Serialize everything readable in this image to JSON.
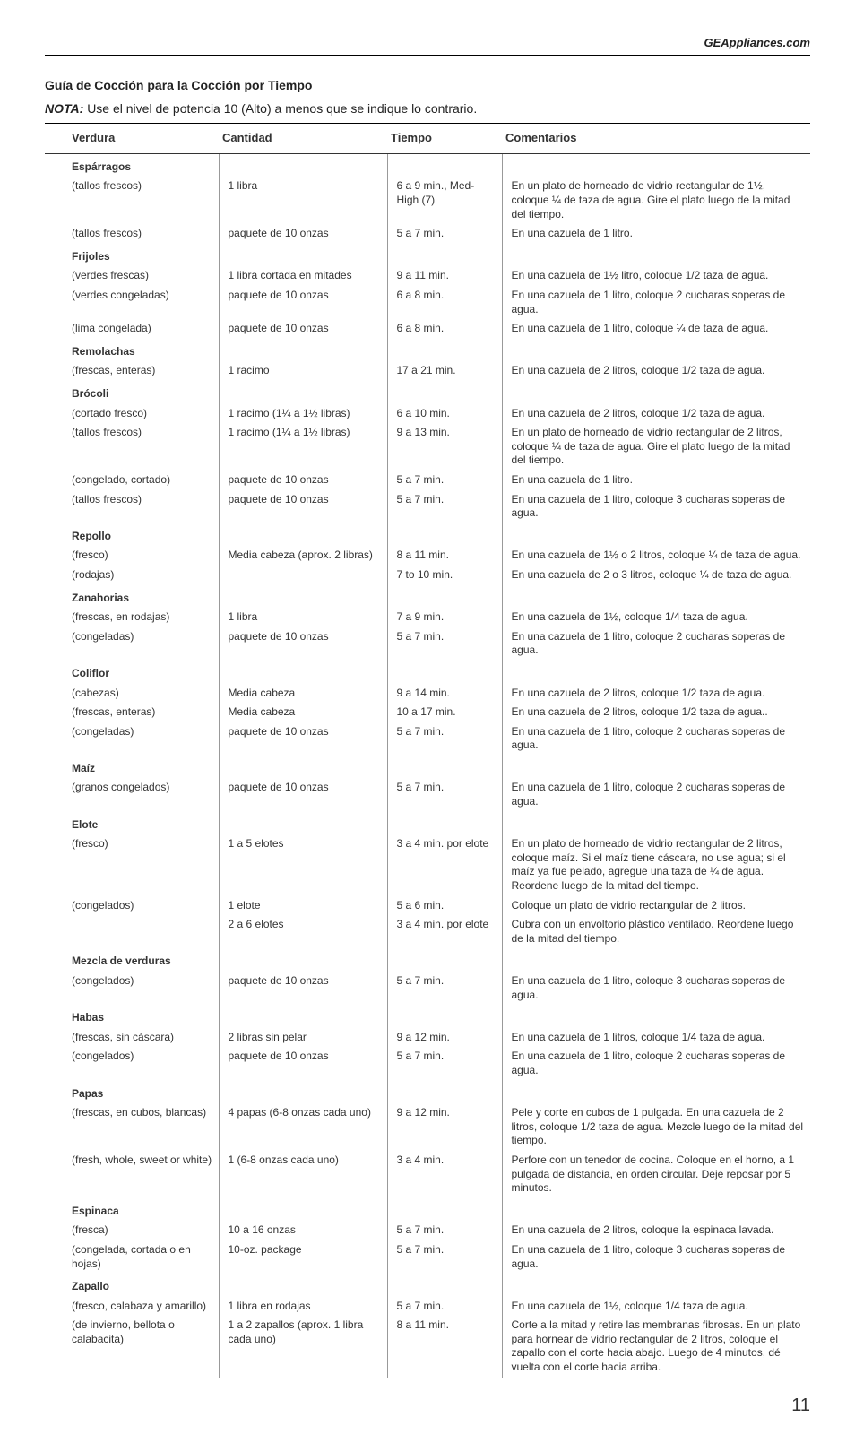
{
  "header_link": "GEAppliances.com",
  "title": "Guía de Cocción para la Cocción por Tiempo",
  "note_label": "NOTA:",
  "note_text": "Use el nivel de potencia 10 (Alto) a menos que se indique lo contrario.",
  "cols": {
    "veg": "Verdura",
    "qty": "Cantidad",
    "time": "Tiempo",
    "com": "Comentarios"
  },
  "rows": [
    {
      "group": "Espárragos"
    },
    {
      "sub": "(tallos frescos)",
      "qty": "1 libra",
      "time": "6 a 9 min., Med-High (7)",
      "com": "En un plato de horneado de vidrio rectangular de 1½, coloque ¼ de taza de agua. Gire el plato luego de la mitad del tiempo."
    },
    {
      "sub": "(tallos frescos)",
      "qty": "paquete de 10 onzas",
      "time": "5 a 7 min.",
      "com": "En una cazuela de 1 litro."
    },
    {
      "group": "Frijoles"
    },
    {
      "sub": "(verdes frescas)",
      "qty": "1 libra cortada en mitades",
      "time": "9 a 11 min.",
      "com": "En una cazuela de 1½ litro, coloque 1/2 taza de agua."
    },
    {
      "sub": "(verdes congeladas)",
      "qty": "paquete de 10 onzas",
      "time": "6 a 8 min.",
      "com": "En una cazuela de 1 litro, coloque 2 cucharas soperas de agua."
    },
    {
      "sub": "(lima congelada)",
      "qty": "paquete de 10 onzas",
      "time": "6 a 8 min.",
      "com": "En una cazuela de 1 litro, coloque ¼ de taza de agua."
    },
    {
      "group": "Remolachas"
    },
    {
      "sub": "(frescas, enteras)",
      "qty": "1 racimo",
      "time": "17 a 21 min.",
      "com": "En una cazuela de 2 litros, coloque 1/2 taza de agua."
    },
    {
      "group": "Brócoli"
    },
    {
      "sub": "(cortado fresco)",
      "qty": "1 racimo  (1¼ a 1½ libras)",
      "time": "6 a 10 min.",
      "com": "En una cazuela de 2 litros, coloque 1/2 taza de agua."
    },
    {
      "sub": "(tallos frescos)",
      "qty": "1 racimo  (1¼ a 1½ libras)",
      "time": "9 a 13 min.",
      "com": "En un plato de horneado de vidrio rectangular de 2 litros, coloque ¼ de taza de agua. Gire el plato luego de la mitad del tiempo."
    },
    {
      "sub": "(congelado, cortado)",
      "qty": "paquete de 10 onzas",
      "time": "5 a 7 min.",
      "com": "En una cazuela de 1 litro."
    },
    {
      "sub": "(tallos frescos)",
      "qty": "paquete de 10 onzas",
      "time": "5 a 7 min.",
      "com": "En una cazuela de 1 litro, coloque 3 cucharas soperas de agua."
    },
    {
      "group": "Repollo"
    },
    {
      "sub": "(fresco)",
      "qty": "Media cabeza (aprox. 2 libras)",
      "time": "8 a 11 min.",
      "com": "En una cazuela de 1½ o 2 litros, coloque ¼ de taza de agua."
    },
    {
      "sub": "(rodajas)",
      "qty": "",
      "time": "7 to 10 min.",
      "com": "En una cazuela de 2 o 3 litros, coloque ¼ de taza de agua."
    },
    {
      "group": "Zanahorias"
    },
    {
      "sub": "(frescas, en rodajas)",
      "qty": "1 libra",
      "time": "7 a 9 min.",
      "com": "En una cazuela de 1½, coloque 1/4 taza de agua."
    },
    {
      "sub": "(congeladas)",
      "qty": "paquete de 10 onzas",
      "time": "5 a 7 min.",
      "com": "En una cazuela de 1 litro, coloque 2 cucharas soperas de agua."
    },
    {
      "group": "Coliflor"
    },
    {
      "sub": "(cabezas)",
      "qty": "Media cabeza",
      "time": "9 a 14 min.",
      "com": "En una cazuela de 2 litros, coloque 1/2 taza de agua."
    },
    {
      "sub": "(frescas, enteras)",
      "qty": "Media cabeza",
      "time": "10 a 17 min.",
      "com": "En una cazuela de 2 litros, coloque 1/2 taza de agua.."
    },
    {
      "sub": "(congeladas)",
      "qty": "paquete de 10 onzas",
      "time": "5 a 7 min.",
      "com": "En una cazuela de 1 litro, coloque 2 cucharas soperas de agua."
    },
    {
      "group": "Maíz"
    },
    {
      "sub": "(granos congelados)",
      "qty": "paquete de 10 onzas",
      "time": "5 a 7 min.",
      "com": "En una cazuela de 1 litro, coloque 2 cucharas soperas de agua."
    },
    {
      "group": "Elote"
    },
    {
      "sub": "(fresco)",
      "qty": "1 a 5 elotes",
      "time": "3 a 4 min. por elote",
      "com": "En un plato de horneado de vidrio rectangular de 2 litros, coloque maíz. Si el maíz tiene cáscara, no use agua; si el maíz ya fue pelado, agregue una taza de ¼ de agua. Reordene luego de la mitad del tiempo."
    },
    {
      "sub": "(congelados)",
      "qty": "1 elote",
      "time": "5 a 6 min.",
      "com": "Coloque un plato de vidrio rectangular de 2 litros."
    },
    {
      "sub": "",
      "qty": "2 a 6 elotes",
      "time": "3 a 4 min. por elote",
      "com": "Cubra con un envoltorio plástico ventilado.  Reordene luego de la mitad del tiempo."
    },
    {
      "group": "Mezcla de verduras"
    },
    {
      "sub": "(congelados)",
      "qty": "paquete de 10 onzas",
      "time": "5 a 7 min.",
      "com": "En una cazuela de 1 litro, coloque 3 cucharas soperas de agua."
    },
    {
      "group": "Habas"
    },
    {
      "sub": "(frescas, sin cáscara)",
      "qty": "2 libras sin pelar",
      "time": "9 a 12 min.",
      "com": "En una cazuela de 1 litros, coloque 1/4 taza de agua."
    },
    {
      "sub": "(congelados)",
      "qty": "paquete de 10 onzas",
      "time": "5 a 7 min.",
      "com": "En una cazuela de 1 litro, coloque 2 cucharas soperas de agua."
    },
    {
      "group": "Papas"
    },
    {
      "sub": "(frescas, en cubos, blancas)",
      "qty": "4 papas (6-8 onzas cada uno)",
      "time": "9 a 12 min.",
      "com": "Pele y corte en cubos de 1 pulgada. En una cazuela de 2 litros, coloque 1/2 taza de agua. Mezcle luego de la mitad del tiempo."
    },
    {
      "sub": "(fresh, whole, sweet or white)",
      "qty": "1 (6-8 onzas cada uno)",
      "time": "3 a 4 min.",
      "com": "Perfore con un tenedor de cocina. Coloque en el horno, a 1 pulgada de distancia, en orden circular.  Deje reposar por 5 minutos."
    },
    {
      "group": "Espinaca"
    },
    {
      "sub": "(fresca)",
      "qty": "10 a 16 onzas",
      "time": "5 a 7 min.",
      "com": "En una cazuela de 2 litros, coloque la espinaca lavada."
    },
    {
      "sub": "(congelada, cortada o en hojas)",
      "qty": "10-oz. package",
      "time": "5 a 7 min.",
      "com": "En una cazuela de 1 litro, coloque 3 cucharas soperas de agua."
    },
    {
      "group": "Zapallo"
    },
    {
      "sub": "(fresco, calabaza y amarillo)",
      "qty": "1 libra en rodajas",
      "time": "5 a 7 min.",
      "com": "En una cazuela de 1½, coloque 1/4 taza de agua."
    },
    {
      "sub": "(de invierno, bellota o calabacita)",
      "qty": "1 a 2 zapallos (aprox. 1 libra cada uno)",
      "time": "8 a 11 min.",
      "com": "Corte a la mitad y retire las membranas fibrosas. En un plato para hornear de vidrio rectangular de 2 litros, coloque el zapallo con el corte hacia abajo. Luego de 4 minutos, dé vuelta con el corte hacia arriba."
    }
  ],
  "page_number": "11"
}
